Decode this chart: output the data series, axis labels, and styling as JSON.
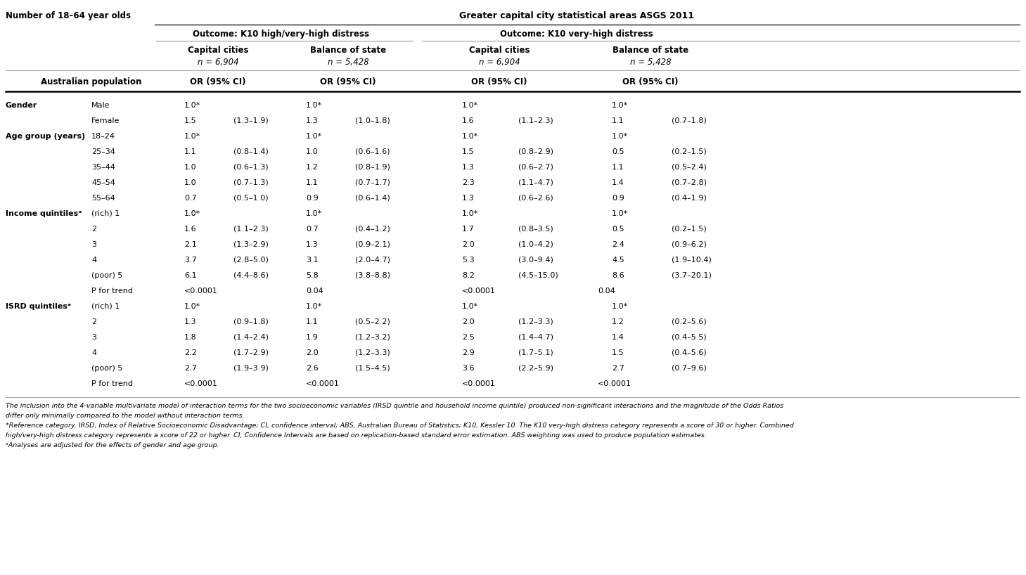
{
  "title_left": "Number of 18–64 year olds",
  "title_right": "Greater capital city statistical areas ASGS 2011",
  "outcome1": "Outcome: K10 high/very-high distress",
  "outcome2": "Outcome: K10 very-high distress",
  "rows": [
    {
      "cat": "Gender",
      "sub": "Male",
      "d": [
        "1.0*",
        "",
        "1.0*",
        "",
        "1.0*",
        "",
        "1.0*",
        ""
      ]
    },
    {
      "cat": "",
      "sub": "Female",
      "d": [
        "1.5",
        "(1.3–1.9)",
        "1.3",
        "(1.0–1.8)",
        "1.6",
        "(1.1–2.3)",
        "1.1",
        "(0.7–1.8)"
      ]
    },
    {
      "cat": "Age group (years)",
      "sub": "18–24",
      "d": [
        "1.0*",
        "",
        "1.0*",
        "",
        "1.0*",
        "",
        "1.0*",
        ""
      ]
    },
    {
      "cat": "",
      "sub": "25–34",
      "d": [
        "1.1",
        "(0.8–1.4)",
        "1.0",
        "(0.6–1.6)",
        "1.5",
        "(0.8–2.9)",
        "0.5",
        "(0.2–1.5)"
      ]
    },
    {
      "cat": "",
      "sub": "35–44",
      "d": [
        "1.0",
        "(0.6–1.3)",
        "1.2",
        "(0.8–1.9)",
        "1.3",
        "(0.6–2.7)",
        "1.1",
        "(0.5–2.4)"
      ]
    },
    {
      "cat": "",
      "sub": "45–54",
      "d": [
        "1.0",
        "(0.7–1.3)",
        "1.1",
        "(0.7–1.7)",
        "2.3",
        "(1.1–4.7)",
        "1.4",
        "(0.7–2.8)"
      ]
    },
    {
      "cat": "",
      "sub": "55–64",
      "d": [
        "0.7",
        "(0.5–1.0)",
        "0.9",
        "(0.6–1.4)",
        "1.3",
        "(0.6–2.6)",
        "0.9",
        "(0.4–1.9)"
      ]
    },
    {
      "cat": "Income quintilesᵃ",
      "sub": "(rich) 1",
      "d": [
        "1.0*",
        "",
        "1.0*",
        "",
        "1.0*",
        "",
        "1.0*",
        ""
      ]
    },
    {
      "cat": "",
      "sub": "2",
      "d": [
        "1.6",
        "(1.1–2.3)",
        "0.7",
        "(0.4–1.2)",
        "1.7",
        "(0.8–3.5)",
        "0.5",
        "(0.2–1.5)"
      ]
    },
    {
      "cat": "",
      "sub": "3",
      "d": [
        "2.1",
        "(1.3–2.9)",
        "1.3",
        "(0.9–2.1)",
        "2.0",
        "(1.0–4.2)",
        "2.4",
        "(0.9–6.2)"
      ]
    },
    {
      "cat": "",
      "sub": "4",
      "d": [
        "3.7",
        "(2.8–5.0)",
        "3.1",
        "(2.0–4.7)",
        "5.3",
        "(3.0–9.4)",
        "4.5",
        "(1.9–10.4)"
      ]
    },
    {
      "cat": "",
      "sub": "(poor) 5",
      "d": [
        "6.1",
        "(4.4–8.6)",
        "5.8",
        "(3.8–8.8)",
        "8.2",
        "(4.5–15.0)",
        "8.6",
        "(3.7–20.1)"
      ]
    },
    {
      "cat": "",
      "sub": "P for trend",
      "d": [
        "<0.0001",
        "",
        "0.04",
        "",
        "<0.0001",
        "",
        "0.04",
        ""
      ],
      "ptrend": true
    },
    {
      "cat": "ISRD quintilesᵃ",
      "sub": "(rich) 1",
      "d": [
        "1.0*",
        "",
        "1.0*",
        "",
        "1.0*",
        "",
        "1.0*",
        ""
      ]
    },
    {
      "cat": "",
      "sub": "2",
      "d": [
        "1.3",
        "(0.9–1.8)",
        "1.1",
        "(0.5–2.2)",
        "2.0",
        "(1.2–3.3)",
        "1.2",
        "(0.2–5.6)"
      ]
    },
    {
      "cat": "",
      "sub": "3",
      "d": [
        "1.8",
        "(1.4–2.4)",
        "1.9",
        "(1.2–3.2)",
        "2.5",
        "(1.4–4.7)",
        "1.4",
        "(0.4–5.5)"
      ]
    },
    {
      "cat": "",
      "sub": "4",
      "d": [
        "2.2",
        "(1.7–2.9)",
        "2.0",
        "(1.2–3.3)",
        "2.9",
        "(1.7–5.1)",
        "1.5",
        "(0.4–5.6)"
      ]
    },
    {
      "cat": "",
      "sub": "(poor) 5",
      "d": [
        "2.7",
        "(1.9–3.9)",
        "2.6",
        "(1.5–4.5)",
        "3.6",
        "(2.2–5.9)",
        "2.7",
        "(0.7–9.6)"
      ]
    },
    {
      "cat": "",
      "sub": "P for trend",
      "d": [
        "<0.0001",
        "",
        "<0.0001",
        "",
        "<0.0001",
        "",
        "<0.0001",
        ""
      ],
      "ptrend": true
    }
  ],
  "footnotes": [
    "The inclusion into the 4-variable multivariate model of interaction terms for the two socioeconomic variables (IRSD quintile and household income quintile) produced non-significant interactions and the magnitude of the Odds Ratios",
    "differ only minimally compared to the model without interaction terms.",
    "*Reference category. IRSD, Index of Relative Socioeconomic Disadvantage; CI, confidence interval; ABS, Australian Bureau of Statistics; K10, Kessler 10. The K10 very-high distress category represents a score of 30 or higher. Combined",
    "high/very-high distress category represents a score of 22 or higher. CI, Confidence Intervals are based on replication-based standard error estimation. ABS weighting was used to produce population estimates.",
    "ᵃAnalyses are adjusted for the effects of gender and age group."
  ]
}
